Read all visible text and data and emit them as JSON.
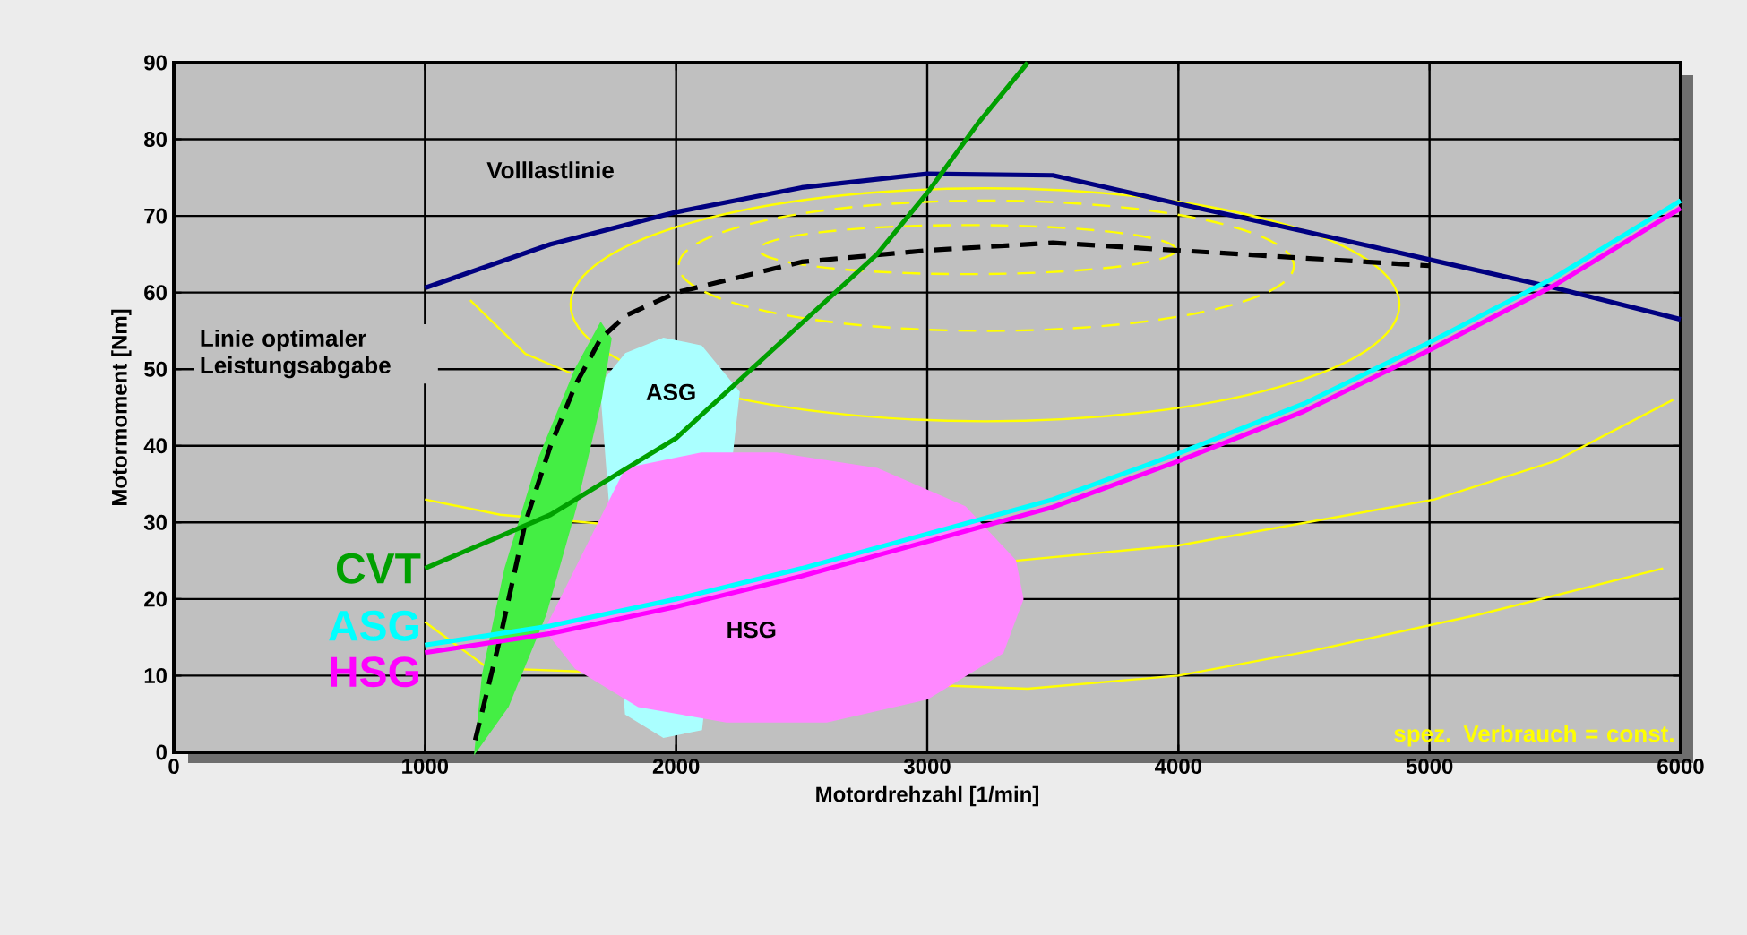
{
  "chart_data": {
    "type": "line",
    "xlabel": "Motordrehzahl [1/min]",
    "ylabel": "Motormoment [Nm]",
    "xlim": [
      0,
      6000
    ],
    "ylim": [
      0,
      90
    ],
    "xticks": [
      0,
      1000,
      2000,
      3000,
      4000,
      5000,
      6000
    ],
    "yticks": [
      0,
      10,
      20,
      30,
      40,
      50,
      60,
      70,
      80,
      90
    ],
    "grid": true,
    "series": [
      {
        "color": "#ffff00",
        "x": [
          1180,
          1400,
          1580
        ],
        "values": [
          59,
          52,
          49.5
        ]
      },
      {
        "color": "#ffff00",
        "x": [
          1000,
          1300,
          3350,
          4000,
          5020,
          5500,
          5970
        ],
        "values": [
          33,
          31,
          25,
          27,
          33,
          38,
          46
        ]
      },
      {
        "color": "#ffff00",
        "x": [
          1000,
          1250,
          3400,
          4000,
          4540,
          5200,
          5930
        ],
        "values": [
          17,
          11,
          8.3,
          10,
          13.3,
          18,
          24
        ]
      },
      {
        "type": "area",
        "color": "#aaffff",
        "x": [
          1700,
          1800,
          1950,
          2100,
          2250,
          2100,
          1950,
          1800,
          1700
        ],
        "values": [
          48,
          52,
          54,
          53,
          47,
          3,
          2,
          5,
          48
        ]
      },
      {
        "type": "area",
        "color": "#ff88ff",
        "x": [
          1800,
          2100,
          2400,
          2800,
          3150,
          3350,
          3380,
          3300,
          3000,
          2600,
          2200,
          1850,
          1600,
          1480
        ],
        "values": [
          37,
          39,
          39,
          37,
          32,
          25,
          20,
          13,
          7,
          4,
          4,
          6,
          11,
          16
        ]
      },
      {
        "type": "area",
        "color": "#44ee44",
        "x": [
          1200,
          1330,
          1480,
          1600,
          1700,
          1740,
          1700,
          1600,
          1450,
          1320,
          1230,
          1200
        ],
        "values": [
          0,
          6,
          18,
          32,
          46,
          54,
          56,
          50,
          38,
          24,
          10,
          0
        ]
      },
      {
        "color": "#000080",
        "x": [
          1000,
          1500,
          2000,
          2500,
          3000,
          3500,
          4000,
          4500,
          5000,
          5500,
          6000
        ],
        "values": [
          60.6,
          66.3,
          70.5,
          73.7,
          75.5,
          75.3,
          71.6,
          68,
          64.3,
          60.6,
          56.5
        ]
      },
      {
        "color": "#000000",
        "line_style": "dashed",
        "x": [
          1200,
          1300,
          1400,
          1500,
          1600,
          1700,
          1800,
          2000,
          2500,
          3000,
          3500,
          4000,
          4500,
          5000
        ],
        "values": [
          1.6,
          15,
          30,
          40,
          48,
          54,
          57,
          60,
          64,
          65.5,
          66.5,
          65.5,
          64.5,
          63.5
        ]
      },
      {
        "name": "CVT",
        "color": "#00a000",
        "x": [
          1000,
          1500,
          2000,
          2500,
          2800,
          3000,
          3200,
          3400
        ],
        "values": [
          24,
          31,
          41,
          56,
          65,
          73,
          82,
          90
        ]
      },
      {
        "name": "ASG",
        "color": "#00ffff",
        "x": [
          1000,
          1500,
          2000,
          2500,
          3000,
          3500,
          4000,
          4500,
          5000,
          5500,
          6000
        ],
        "values": [
          14,
          16.5,
          20,
          24,
          28.5,
          33,
          39,
          45.5,
          53.5,
          62,
          72
        ]
      },
      {
        "name": "HSG",
        "color": "#ff00ff",
        "x": [
          1000,
          1500,
          2000,
          2500,
          3000,
          3500,
          4000,
          4500,
          5000,
          5500,
          6000
        ],
        "values": [
          13,
          15.5,
          19,
          23,
          27.5,
          32,
          38,
          44.5,
          52.5,
          61,
          71
        ]
      }
    ],
    "annotations": [
      "Volllastlinie",
      "Linie optimaler Leistungsabgabe",
      "ASG",
      "HSG",
      "spez. Verbrauch = const."
    ]
  }
}
